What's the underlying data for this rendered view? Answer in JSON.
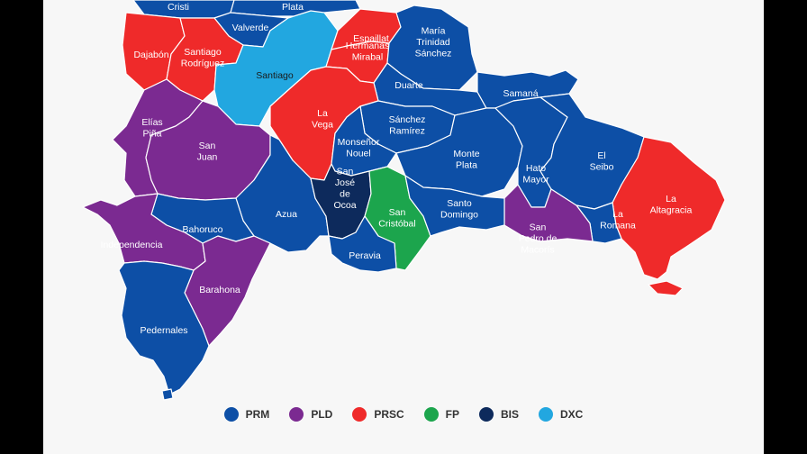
{
  "parties": {
    "PRM": {
      "label": "PRM",
      "color": "#0d4fa6"
    },
    "PLD": {
      "label": "PLD",
      "color": "#7b2a91"
    },
    "PRSC": {
      "label": "PRSC",
      "color": "#ef2a2a"
    },
    "FP": {
      "label": "FP",
      "color": "#1ca54d"
    },
    "BIS": {
      "label": "BIS",
      "color": "#0d2a5c"
    },
    "DXC": {
      "label": "DXC",
      "color": "#22a7e0"
    }
  },
  "legend": [
    "PRM",
    "PLD",
    "PRSC",
    "FP",
    "BIS",
    "DXC"
  ],
  "provinces": [
    {
      "key": "cristi",
      "label": [
        "Cristi"
      ],
      "party": "PRM"
    },
    {
      "key": "plata",
      "label": [
        "Plata"
      ],
      "party": "PRM"
    },
    {
      "key": "valverde",
      "label": [
        "Valverde"
      ],
      "party": "PRM"
    },
    {
      "key": "dajabon",
      "label": [
        "Dajabón"
      ],
      "party": "PRSC"
    },
    {
      "key": "santiago_rodriguez",
      "label": [
        "Santiago",
        "Rodríguez"
      ],
      "party": "PRSC"
    },
    {
      "key": "santiago",
      "label": [
        "Santiago"
      ],
      "party": "DXC"
    },
    {
      "key": "espaillat",
      "label": [
        "Espaillat"
      ],
      "party": "PRSC"
    },
    {
      "key": "hermanas_mirabal",
      "label": [
        "Hermanas",
        "Mirabal"
      ],
      "party": "PRSC"
    },
    {
      "key": "maria_trinidad_sanchez",
      "label": [
        "María",
        "Trinidad",
        "Sánchez"
      ],
      "party": "PRM"
    },
    {
      "key": "duarte",
      "label": [
        "Duarte"
      ],
      "party": "PRM"
    },
    {
      "key": "samana",
      "label": [
        "Samaná"
      ],
      "party": "PRM"
    },
    {
      "key": "elias_pina",
      "label": [
        "Elías",
        "Piña"
      ],
      "party": "PLD"
    },
    {
      "key": "san_juan",
      "label": [
        "San",
        "Juan"
      ],
      "party": "PLD"
    },
    {
      "key": "la_vega",
      "label": [
        "La",
        "Vega"
      ],
      "party": "PRSC"
    },
    {
      "key": "sanchez_ramirez",
      "label": [
        "Sánchez",
        "Ramírez"
      ],
      "party": "PRM"
    },
    {
      "key": "monsenor_nouel",
      "label": [
        "Monseñor",
        "Nouel"
      ],
      "party": "PRM"
    },
    {
      "key": "monte_plata",
      "label": [
        "Monte",
        "Plata"
      ],
      "party": "PRM"
    },
    {
      "key": "hato_mayor",
      "label": [
        "Hato",
        "Mayor"
      ],
      "party": "PRM"
    },
    {
      "key": "el_seibo",
      "label": [
        "El",
        "Seibo"
      ],
      "party": "PRM"
    },
    {
      "key": "la_altagracia",
      "label": [
        "La",
        "Altagracia"
      ],
      "party": "PRSC"
    },
    {
      "key": "azua",
      "label": [
        "Azua"
      ],
      "party": "PRM"
    },
    {
      "key": "san_jose_de_ocoa",
      "label": [
        "San",
        "José",
        "de",
        "Ocoa"
      ],
      "party": "BIS"
    },
    {
      "key": "san_cristobal",
      "label": [
        "San",
        "Cristóbal"
      ],
      "party": "FP"
    },
    {
      "key": "santo_domingo",
      "label": [
        "Santo",
        "Domingo"
      ],
      "party": "PRM"
    },
    {
      "key": "san_pedro_de_macoris",
      "label": [
        "San",
        "Pedro de",
        "Macorís"
      ],
      "party": "PLD"
    },
    {
      "key": "la_romana",
      "label": [
        "La",
        "Romana"
      ],
      "party": "PRM"
    },
    {
      "key": "bahoruco",
      "label": [
        "Bahoruco"
      ],
      "party": "PRM"
    },
    {
      "key": "independencia",
      "label": [
        "Independencia"
      ],
      "party": "PLD"
    },
    {
      "key": "peravia",
      "label": [
        "Peravia"
      ],
      "party": "PRM"
    },
    {
      "key": "barahona",
      "label": [
        "Barahona"
      ],
      "party": "PLD"
    },
    {
      "key": "pedernales",
      "label": [
        "Pedernales"
      ],
      "party": "PRM"
    }
  ]
}
